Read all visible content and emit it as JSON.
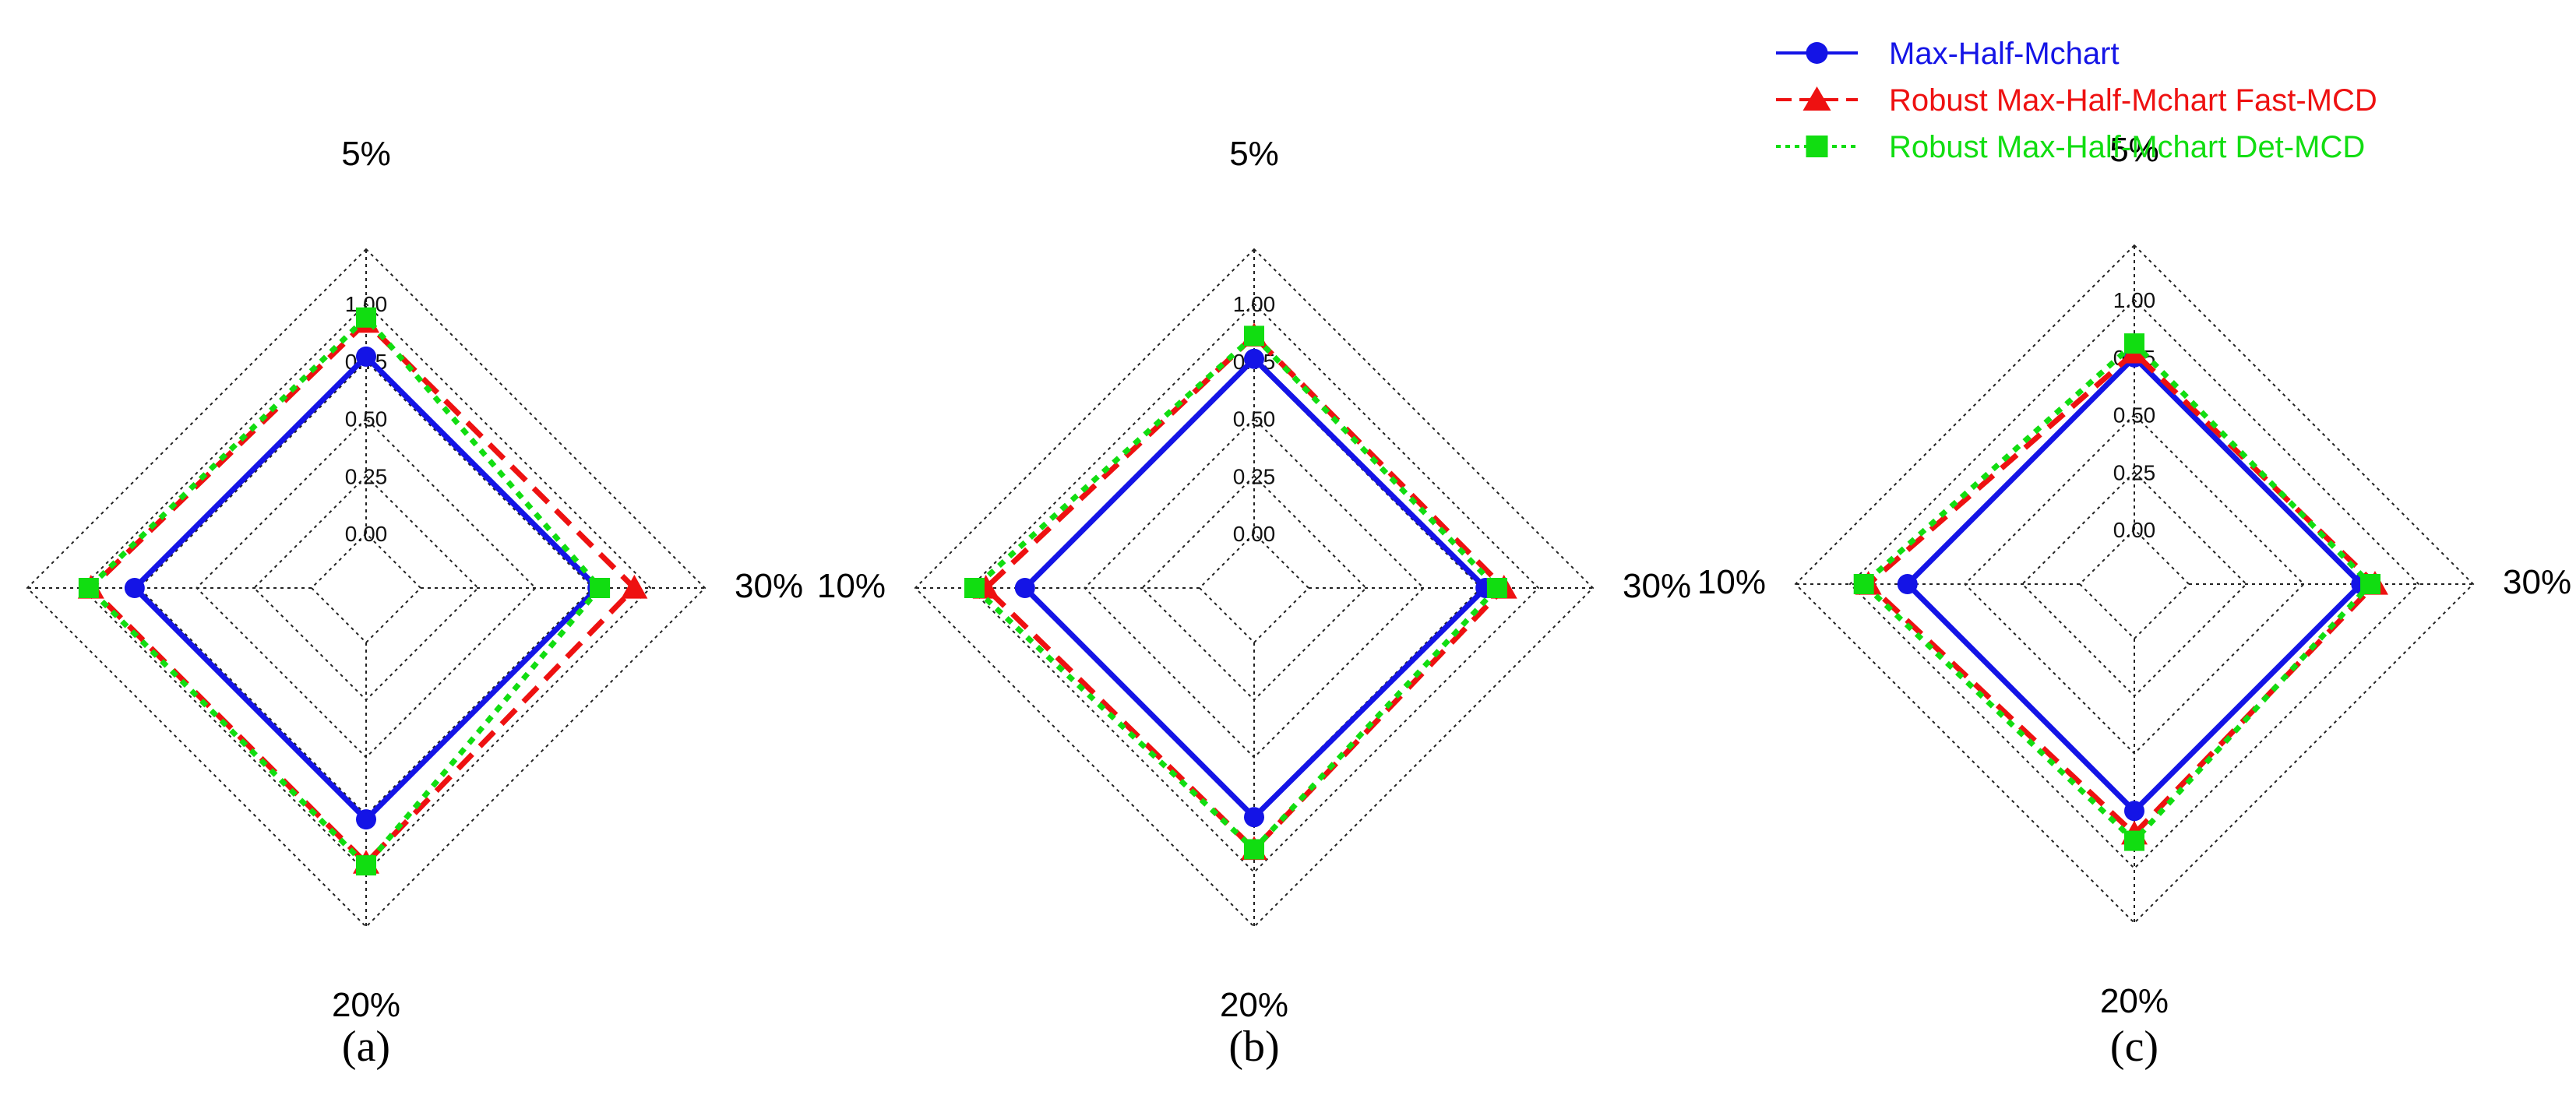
{
  "chart_data": [
    {
      "type": "radar",
      "panel_label": "(a)",
      "axes": [
        "5%",
        "10%",
        "20%",
        "30%"
      ],
      "ticks": [
        "0.00",
        "0.25",
        "0.50",
        "0.75",
        "1.00"
      ],
      "rlim": [
        0,
        1
      ],
      "series": [
        {
          "name": "Max-Half-Mchart",
          "values": [
            0.77,
            0.77,
            0.77,
            0.77
          ]
        },
        {
          "name": "Robust Max-Half-Mchart Fast-MCD",
          "values": [
            0.92,
            0.96,
            0.96,
            0.93
          ]
        },
        {
          "name": "Robust Max-Half-Mchart Det-MCD",
          "values": [
            0.94,
            0.97,
            0.97,
            0.78
          ]
        }
      ]
    },
    {
      "type": "radar",
      "panel_label": "(b)",
      "axes": [
        "5%",
        "10%",
        "20%",
        "30%"
      ],
      "ticks": [
        "0.00",
        "0.25",
        "0.50",
        "0.75",
        "1.00"
      ],
      "rlim": [
        0,
        1
      ],
      "series": [
        {
          "name": "Max-Half-Mchart",
          "values": [
            0.76,
            0.76,
            0.76,
            0.77
          ]
        },
        {
          "name": "Robust Max-Half-Mchart Fast-MCD",
          "values": [
            0.86,
            0.93,
            0.9,
            0.85
          ]
        },
        {
          "name": "Robust Max-Half-Mchart Det-MCD",
          "values": [
            0.86,
            0.98,
            0.9,
            0.82
          ]
        }
      ]
    },
    {
      "type": "radar",
      "panel_label": "(c)",
      "axes": [
        "5%",
        "10%",
        "20%",
        "30%"
      ],
      "ticks": [
        "0.00",
        "0.25",
        "0.50",
        "0.75",
        "1.00"
      ],
      "rlim": [
        0,
        1
      ],
      "series": [
        {
          "name": "Max-Half-Mchart",
          "values": [
            0.75,
            0.75,
            0.75,
            0.75
          ]
        },
        {
          "name": "Robust Max-Half-Mchart Fast-MCD",
          "values": [
            0.77,
            0.92,
            0.85,
            0.81
          ]
        },
        {
          "name": "Robust Max-Half-Mchart Det-MCD",
          "values": [
            0.81,
            0.94,
            0.88,
            0.79
          ]
        }
      ]
    }
  ],
  "legend": {
    "placement": "top-right",
    "entries": [
      {
        "label": "Max-Half-Mchart",
        "color": "#1414e6",
        "marker": "circle",
        "line": "solid"
      },
      {
        "label": "Robust Max-Half-Mchart Fast-MCD",
        "color": "#ee1111",
        "marker": "triangle",
        "line": "dashed"
      },
      {
        "label": "Robust Max-Half-Mchart Det-MCD",
        "color": "#11dd11",
        "marker": "square",
        "line": "dotted"
      }
    ]
  }
}
